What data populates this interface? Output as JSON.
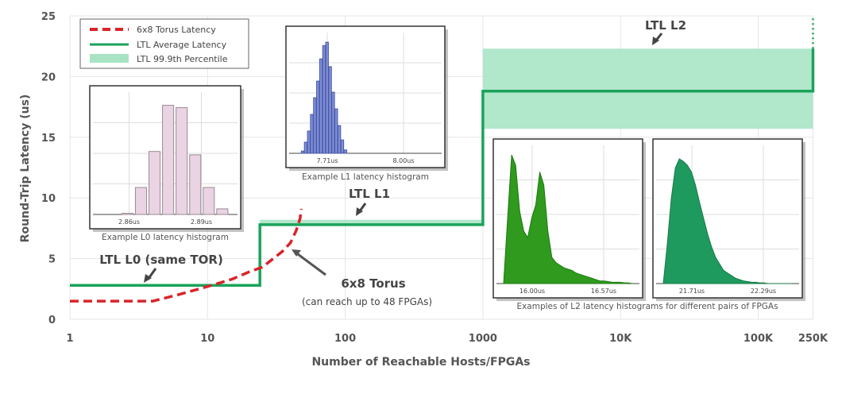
{
  "chart_data": {
    "type": "line",
    "xlabel": "Number of Reachable Hosts/FPGAs",
    "ylabel": "Round-Trip Latency (us)",
    "x_scale": "log",
    "xlim": [
      1,
      250000
    ],
    "ylim": [
      0,
      25
    ],
    "x_ticks": [
      {
        "value": 1,
        "label": "1"
      },
      {
        "value": 10,
        "label": "10"
      },
      {
        "value": 100,
        "label": "100"
      },
      {
        "value": 1000,
        "label": "1000"
      },
      {
        "value": 10000,
        "label": "10K"
      },
      {
        "value": 100000,
        "label": "100K"
      },
      {
        "value": 250000,
        "label": "250K"
      }
    ],
    "y_ticks": [
      0,
      5,
      10,
      15,
      20,
      25
    ],
    "grid": true,
    "legend_position": "top-left",
    "series": [
      {
        "name": "6x8 Torus Latency",
        "style": "dashed",
        "color": "#d9242a",
        "points": [
          [
            1,
            1.5
          ],
          [
            4,
            1.5
          ],
          [
            6,
            2.0
          ],
          [
            10,
            2.7
          ],
          [
            15,
            3.3
          ],
          [
            20,
            3.9
          ],
          [
            25,
            4.3
          ],
          [
            30,
            5.0
          ],
          [
            35,
            5.6
          ],
          [
            40,
            6.3
          ],
          [
            44,
            7.3
          ],
          [
            47,
            8.3
          ],
          [
            48,
            9.1
          ]
        ]
      },
      {
        "name": "LTL Average Latency",
        "style": "solid",
        "color": "#1aa35a",
        "points": [
          [
            1,
            2.8
          ],
          [
            24,
            2.8
          ],
          [
            24,
            7.8
          ],
          [
            1000,
            7.8
          ],
          [
            1000,
            18.8
          ],
          [
            250000,
            18.8
          ],
          [
            250000,
            22.3
          ]
        ],
        "dotted_extension": [
          [
            250000,
            22.3
          ],
          [
            250000,
            25
          ]
        ]
      },
      {
        "name": "LTL 99.9th Percentile",
        "style": "band",
        "color": "#a8e4c4",
        "bands": [
          {
            "x": [
              24,
              1000
            ],
            "y": [
              7.8,
              8.2
            ]
          },
          {
            "x": [
              1000,
              250000
            ],
            "y": [
              15.7,
              22.3
            ]
          }
        ]
      }
    ],
    "annotations": [
      {
        "id": "l0",
        "text": "LTL L0 (same TOR)"
      },
      {
        "id": "l1",
        "text": "LTL L1"
      },
      {
        "id": "l2",
        "text": "LTL L2"
      },
      {
        "id": "torus",
        "text": "6x8 Torus",
        "subtext": "(can reach up to 48 FPGAs)"
      }
    ],
    "insets": [
      {
        "id": "l0-hist",
        "caption": "Example L0 latency histogram",
        "color": "#ead3e3",
        "stroke": "#9a8a95",
        "tick_labels": [
          "2.86us",
          "2.89us"
        ],
        "bars": [
          0.01,
          0.24,
          0.56,
          0.97,
          0.95,
          0.53,
          0.24,
          0.05
        ]
      },
      {
        "id": "l1-hist",
        "caption": "Example L1 latency histogram",
        "color": "#7f8fd6",
        "stroke": "#4a58a8",
        "tick_labels": [
          "7.71us",
          "8.00us"
        ],
        "bars": [
          0.02,
          0.1,
          0.2,
          0.35,
          0.5,
          0.65,
          0.85,
          0.97,
          1.0,
          0.78,
          0.55,
          0.4,
          0.25,
          0.12,
          0.03
        ]
      },
      {
        "id": "l2a-hist",
        "color": "#2f9a1e",
        "stroke": "#1e7a10",
        "tick_labels": [
          "16.00us",
          "16.57us"
        ],
        "profile": [
          0,
          0.5,
          0.98,
          0.9,
          0.55,
          0.4,
          0.35,
          0.5,
          0.6,
          0.85,
          0.75,
          0.4,
          0.2,
          0.16,
          0.14,
          0.12,
          0.11,
          0.1,
          0.08,
          0.07,
          0.06,
          0.05,
          0.04,
          0.03,
          0.02,
          0.02,
          0.015,
          0.01,
          0.01,
          0.01,
          0.005,
          0.005,
          0
        ]
      },
      {
        "id": "l2b-hist",
        "color": "#1f9a5e",
        "stroke": "#157a44",
        "tick_labels": [
          "21.71us",
          "22.29us"
        ],
        "profile": [
          0,
          0.3,
          0.65,
          0.88,
          0.95,
          0.93,
          0.9,
          0.85,
          0.75,
          0.62,
          0.5,
          0.38,
          0.28,
          0.2,
          0.15,
          0.1,
          0.08,
          0.06,
          0.04,
          0.03,
          0.02,
          0.015,
          0.01,
          0.01,
          0.005,
          0.005,
          0,
          0,
          0,
          0,
          0,
          0,
          0
        ]
      }
    ],
    "l2_caption": "Examples of L2 latency histograms for different pairs of FPGAs"
  }
}
